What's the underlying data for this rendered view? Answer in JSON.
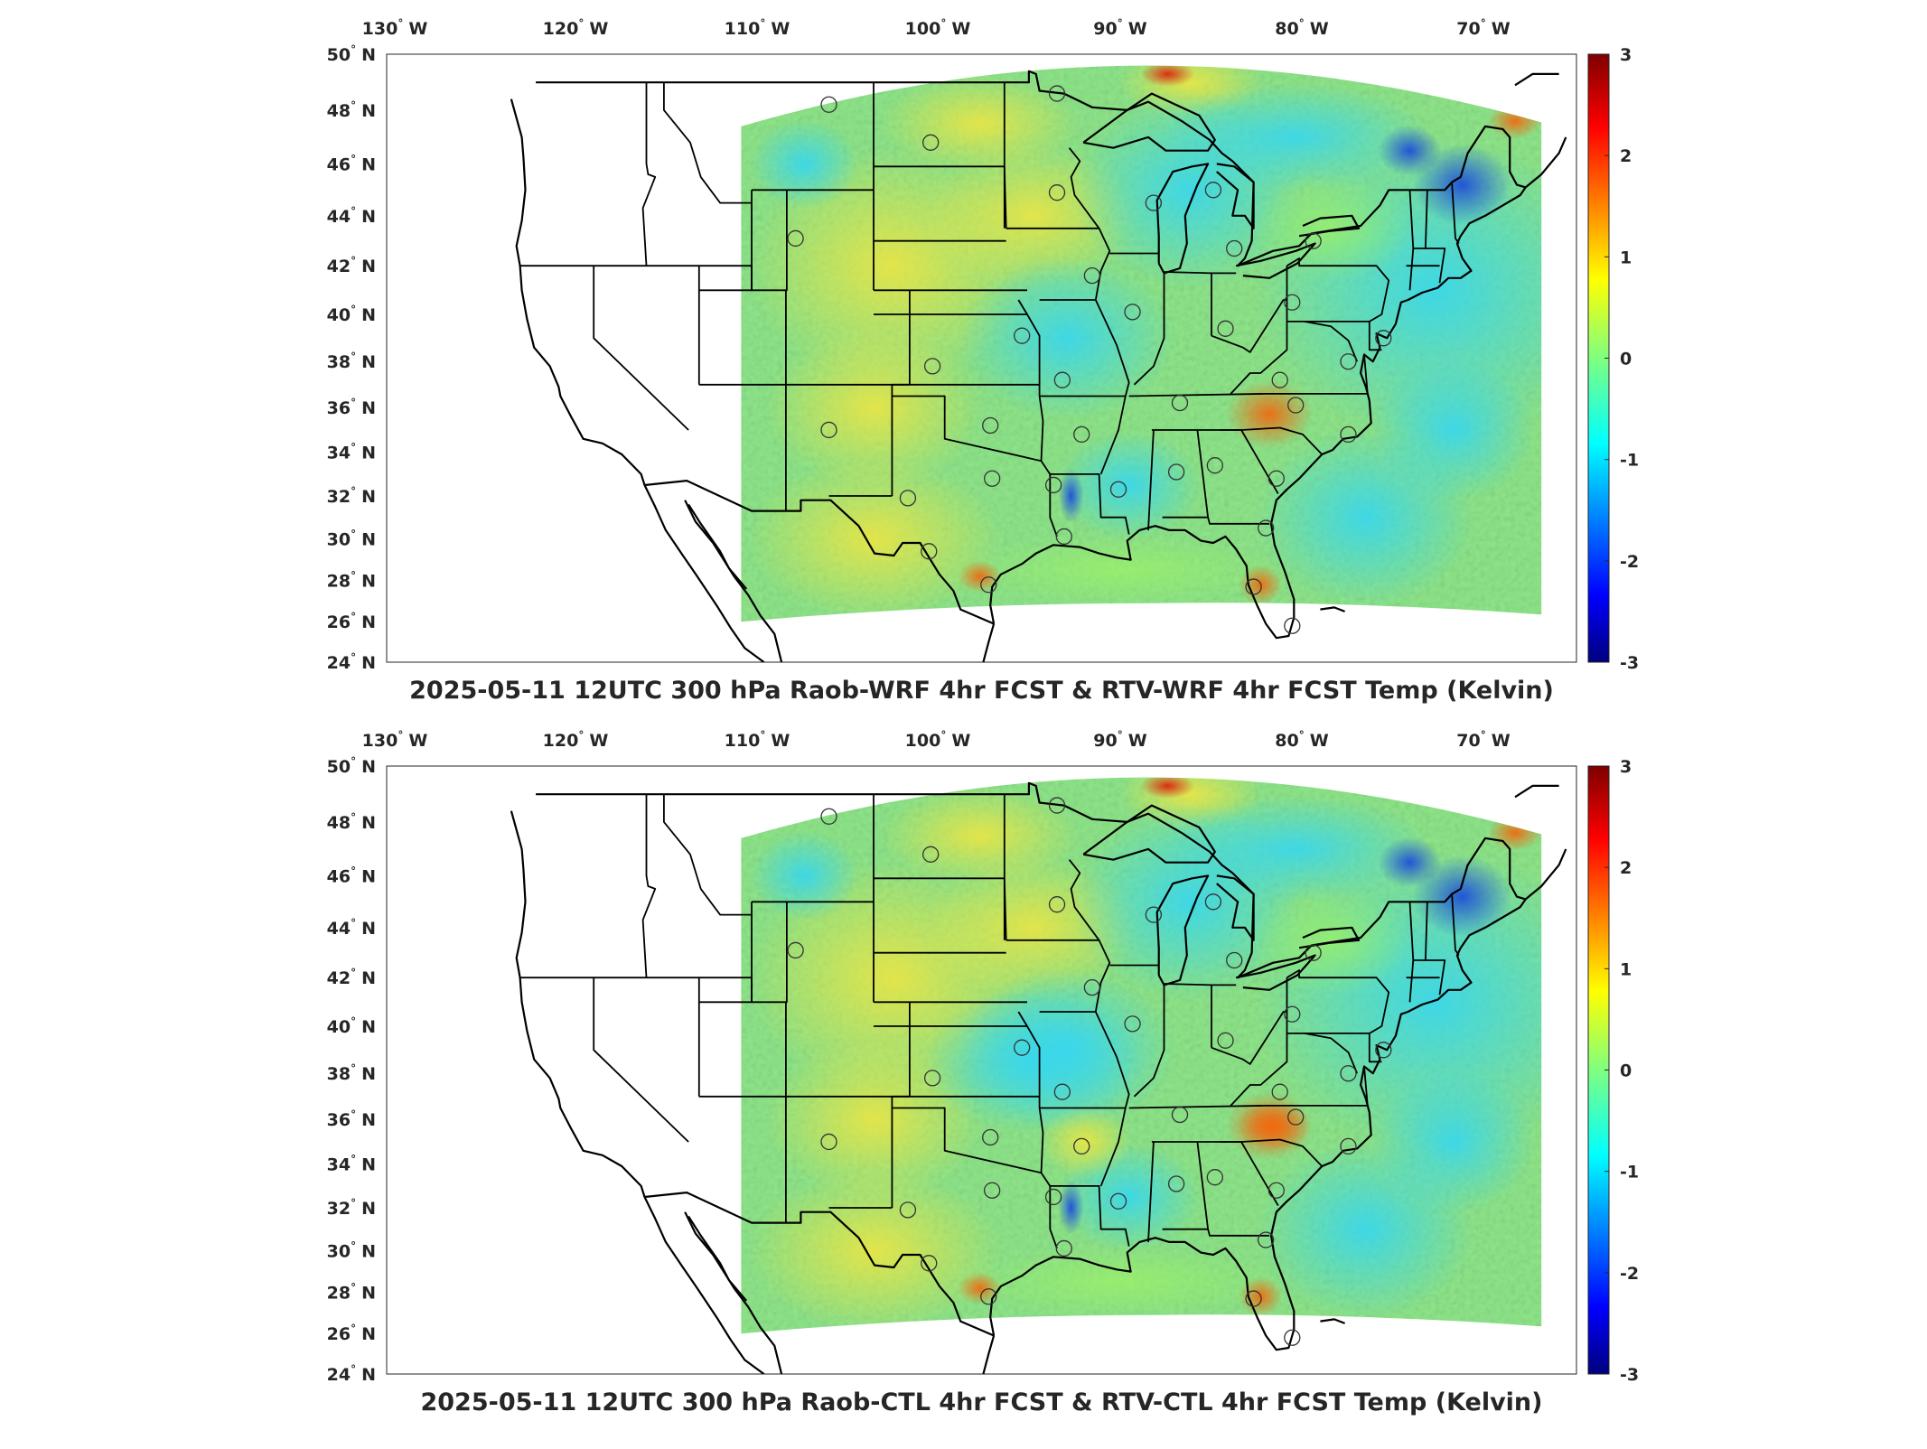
{
  "panels": [
    {
      "title": "2025-05-11 12UTC 300 hPa Raob-WRF 4hr FCST & RTV-WRF 4hr FCST Temp (Kelvin)",
      "variant": "wrf"
    },
    {
      "title": "2025-05-11 12UTC 300 hPa Raob-CTL 4hr FCST & RTV-CTL 4hr FCST Temp (Kelvin)",
      "variant": "ctl"
    }
  ],
  "lon_labels": [
    {
      "deg": "130",
      "hemi": "W"
    },
    {
      "deg": "120",
      "hemi": "W"
    },
    {
      "deg": "110",
      "hemi": "W"
    },
    {
      "deg": "100",
      "hemi": "W"
    },
    {
      "deg": "90",
      "hemi": "W"
    },
    {
      "deg": "80",
      "hemi": "W"
    },
    {
      "deg": "70",
      "hemi": "W"
    }
  ],
  "lat_labels": [
    {
      "deg": "50",
      "hemi": "N"
    },
    {
      "deg": "48",
      "hemi": "N"
    },
    {
      "deg": "46",
      "hemi": "N"
    },
    {
      "deg": "44",
      "hemi": "N"
    },
    {
      "deg": "42",
      "hemi": "N"
    },
    {
      "deg": "40",
      "hemi": "N"
    },
    {
      "deg": "38",
      "hemi": "N"
    },
    {
      "deg": "36",
      "hemi": "N"
    },
    {
      "deg": "34",
      "hemi": "N"
    },
    {
      "deg": "32",
      "hemi": "N"
    },
    {
      "deg": "30",
      "hemi": "N"
    },
    {
      "deg": "28",
      "hemi": "N"
    },
    {
      "deg": "26",
      "hemi": "N"
    },
    {
      "deg": "24",
      "hemi": "N"
    }
  ],
  "colorbar": {
    "min": -3,
    "max": 3,
    "ticks": [
      "3",
      "2",
      "1",
      "0",
      "-1",
      "-2",
      "-3"
    ],
    "colormap": "jet"
  },
  "raob_stations": [
    {
      "lon": -106.6,
      "lat": 48.2
    },
    {
      "lon": -100.8,
      "lat": 46.8
    },
    {
      "lon": -93.6,
      "lat": 48.6
    },
    {
      "lon": -93.6,
      "lat": 44.9
    },
    {
      "lon": -88.1,
      "lat": 44.5
    },
    {
      "lon": -84.7,
      "lat": 45.0
    },
    {
      "lon": -83.5,
      "lat": 42.7
    },
    {
      "lon": -79.0,
      "lat": 43.0
    },
    {
      "lon": -108.5,
      "lat": 43.1
    },
    {
      "lon": -91.6,
      "lat": 41.6
    },
    {
      "lon": -89.3,
      "lat": 40.1
    },
    {
      "lon": -84.0,
      "lat": 39.4
    },
    {
      "lon": -80.2,
      "lat": 40.5
    },
    {
      "lon": -75.0,
      "lat": 39.0
    },
    {
      "lon": -77.0,
      "lat": 38.0
    },
    {
      "lon": -95.6,
      "lat": 39.1
    },
    {
      "lon": -100.7,
      "lat": 37.8
    },
    {
      "lon": -93.3,
      "lat": 37.2
    },
    {
      "lon": -86.6,
      "lat": 36.2
    },
    {
      "lon": -80.0,
      "lat": 36.1
    },
    {
      "lon": -80.9,
      "lat": 37.2
    },
    {
      "lon": -106.6,
      "lat": 35.0
    },
    {
      "lon": -97.4,
      "lat": 35.2
    },
    {
      "lon": -92.2,
      "lat": 34.8
    },
    {
      "lon": -77.0,
      "lat": 34.8
    },
    {
      "lon": -97.3,
      "lat": 32.8
    },
    {
      "lon": -102.1,
      "lat": 31.9
    },
    {
      "lon": -93.8,
      "lat": 32.5
    },
    {
      "lon": -90.1,
      "lat": 32.3
    },
    {
      "lon": -86.8,
      "lat": 33.1
    },
    {
      "lon": -84.6,
      "lat": 33.4
    },
    {
      "lon": -81.1,
      "lat": 32.8
    },
    {
      "lon": -93.2,
      "lat": 30.1
    },
    {
      "lon": -81.7,
      "lat": 30.5
    },
    {
      "lon": -100.9,
      "lat": 29.4
    },
    {
      "lon": -97.5,
      "lat": 27.8
    },
    {
      "lon": -82.4,
      "lat": 27.7
    },
    {
      "lon": -80.2,
      "lat": 25.8
    }
  ]
}
